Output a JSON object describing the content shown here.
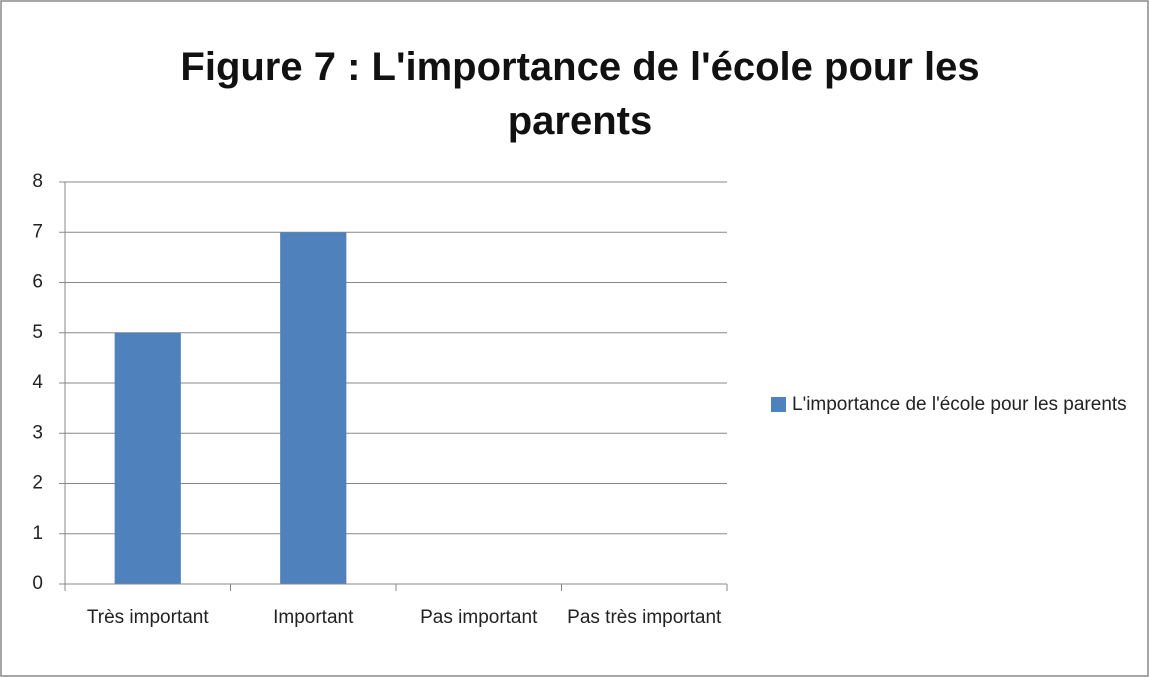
{
  "chart_data": {
    "type": "bar",
    "title": "Figure 7 : L'importance de l'école pour les parents",
    "categories": [
      "Très important",
      "Important",
      "Pas important",
      "Pas très important"
    ],
    "series": [
      {
        "name": "L'importance de l'école pour les parents",
        "color": "#4f81bd",
        "values": [
          5,
          7,
          0,
          0
        ]
      }
    ],
    "ylim": [
      0,
      8
    ],
    "yticks": [
      0,
      1,
      2,
      3,
      4,
      5,
      6,
      7,
      8
    ],
    "grid": true,
    "legend": "right"
  }
}
